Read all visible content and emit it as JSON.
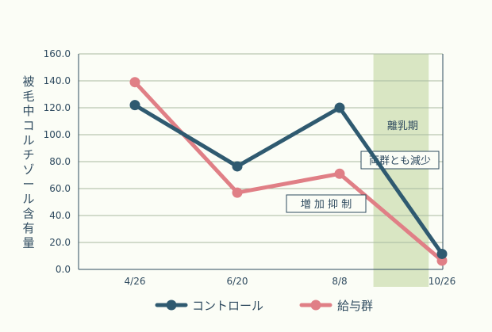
{
  "colors": {
    "background": "#fbfdf6",
    "control": "#2f5a70",
    "feed": "#e07f86",
    "weaning_band": "#d9e6c3",
    "grid": "#a8b9a0",
    "axis": "#2e4a5f",
    "text": "#2e4a5f"
  },
  "chart_data": {
    "type": "line",
    "ylabel": "被毛中コルチゾール含有量",
    "xlabel": "",
    "title": "",
    "ylim": [
      0,
      160
    ],
    "yticks": [
      "0.0",
      "20.0",
      "40.0",
      "60.0",
      "80.0",
      "100.0",
      "120.0",
      "140.0",
      "160.0"
    ],
    "categories": [
      "4/26",
      "6/20",
      "8/8",
      "10/26"
    ],
    "grid": true,
    "legend_position": "bottom",
    "series": [
      {
        "name": "コントロール",
        "values": [
          122,
          76.5,
          120,
          11.5
        ],
        "color": "#2f5a70"
      },
      {
        "name": "給与群",
        "values": [
          139,
          57,
          71,
          6.5
        ],
        "color": "#e07f86"
      }
    ],
    "shaded_region": {
      "label": "離乳期",
      "x_from": 2.33,
      "x_to": 2.87
    },
    "annotations": [
      {
        "text": "両群とも減少"
      },
      {
        "text": "増 加 抑 制"
      }
    ]
  }
}
